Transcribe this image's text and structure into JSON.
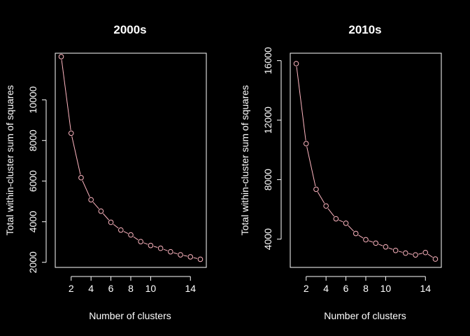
{
  "figure": {
    "background": "#000000",
    "foreground": "#ffffff",
    "line_color": "#ffb6c1",
    "point_color": "#ffb6c1"
  },
  "chart_data": [
    {
      "type": "line",
      "title": "2000s",
      "xlabel": "Number of clusters",
      "ylabel": "Total within-cluster sum of squares",
      "xlim": [
        0.4,
        15.6
      ],
      "ylim": [
        1750,
        12300
      ],
      "x_ticks": [
        2,
        4,
        6,
        8,
        10,
        14
      ],
      "y_ticks": [
        2000,
        4000,
        6000,
        8000,
        10000
      ],
      "markers": "open-circle",
      "series": [
        {
          "x": [
            1,
            2,
            3,
            4,
            5,
            6,
            7,
            8,
            9,
            10,
            11,
            12,
            13,
            14,
            15
          ],
          "values": [
            12130,
            8360,
            6170,
            5080,
            4520,
            3970,
            3590,
            3350,
            3020,
            2830,
            2690,
            2520,
            2370,
            2270,
            2150
          ]
        }
      ]
    },
    {
      "type": "line",
      "title": "2010s",
      "xlabel": "Number of clusters",
      "ylabel": "Total within-cluster sum of squares",
      "xlim": [
        0.4,
        15.6
      ],
      "ylim": [
        2100,
        16500
      ],
      "x_ticks": [
        2,
        4,
        6,
        8,
        10,
        14
      ],
      "y_ticks": [
        4000,
        8000,
        12000,
        16000
      ],
      "markers": "open-circle",
      "series": [
        {
          "x": [
            1,
            2,
            3,
            4,
            5,
            6,
            7,
            8,
            9,
            10,
            11,
            12,
            13,
            14,
            15
          ],
          "values": [
            15800,
            10420,
            7350,
            6230,
            5370,
            5070,
            4380,
            3960,
            3730,
            3480,
            3240,
            3060,
            2940,
            3100,
            2660
          ]
        }
      ]
    }
  ]
}
